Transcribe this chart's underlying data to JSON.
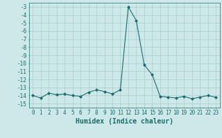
{
  "x": [
    0,
    1,
    2,
    3,
    4,
    5,
    6,
    7,
    8,
    9,
    10,
    11,
    12,
    13,
    14,
    15,
    16,
    17,
    18,
    19,
    20,
    21,
    22,
    23
  ],
  "y": [
    -14.0,
    -14.3,
    -13.7,
    -13.9,
    -13.8,
    -14.0,
    -14.1,
    -13.6,
    -13.3,
    -13.5,
    -13.8,
    -13.3,
    -3.0,
    -4.7,
    -10.2,
    -11.4,
    -14.1,
    -14.2,
    -14.3,
    -14.1,
    -14.4,
    -14.2,
    -14.0,
    -14.2
  ],
  "line_color": "#1a6b6b",
  "marker": "D",
  "marker_size": 2,
  "bg_color": "#cce8e8",
  "grid_color": "#aacccc",
  "xlabel": "Humidex (Indice chaleur)",
  "xlim": [
    -0.5,
    23.5
  ],
  "ylim": [
    -15.5,
    -2.5
  ],
  "yticks": [
    -3,
    -4,
    -5,
    -6,
    -7,
    -8,
    -9,
    -10,
    -11,
    -12,
    -13,
    -14,
    -15
  ],
  "xticks": [
    0,
    1,
    2,
    3,
    4,
    5,
    6,
    7,
    8,
    9,
    10,
    11,
    12,
    13,
    14,
    15,
    16,
    17,
    18,
    19,
    20,
    21,
    22,
    23
  ],
  "font_color": "#1a6b6b",
  "tick_fontsize": 5.5,
  "label_fontsize": 7.0,
  "linewidth": 0.8
}
